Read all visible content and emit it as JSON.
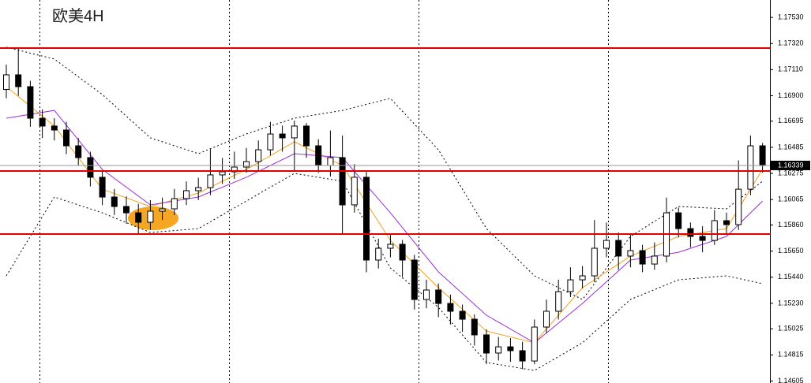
{
  "chart_data": {
    "type": "candlestick",
    "title": "欧美4H",
    "open": [
      1.1695,
      1.17068,
      1.16973,
      1.16719,
      1.16656,
      1.16624,
      1.16497,
      1.16402,
      1.16244,
      1.16085,
      1.16009,
      1.15958,
      1.15882,
      1.15971,
      1.1599,
      1.16072,
      1.16136,
      1.16161,
      1.16263,
      1.16288,
      1.16326,
      1.1637,
      1.16465,
      1.16592,
      1.16561,
      1.16656,
      1.16497,
      1.16339,
      1.16402,
      1.16022,
      1.16244,
      1.15578,
      1.15673,
      1.15705,
      1.15578,
      1.15261,
      1.15337,
      1.15229,
      1.15166,
      1.15102,
      1.14976,
      1.1483,
      1.1488,
      1.14849,
      1.14766,
      1.15039,
      1.15166,
      1.15324,
      1.15419,
      1.15451,
      1.15673,
      1.15736,
      1.1561,
      1.15654,
      1.15546,
      1.1561,
      1.15958,
      1.15831,
      1.15768,
      1.15736,
      1.15895,
      1.15863,
      1.16148,
      1.16497
    ],
    "high": [
      1.1715,
      1.1729,
      1.1702,
      1.1679,
      1.1672,
      1.1669,
      1.1656,
      1.1645,
      1.163,
      1.1615,
      1.1609,
      1.1603,
      1.1606,
      1.1608,
      1.1615,
      1.1621,
      1.1624,
      1.1647,
      1.164,
      1.1645,
      1.1648,
      1.1654,
      1.1669,
      1.1666,
      1.167,
      1.1668,
      1.1655,
      1.1662,
      1.1658,
      1.1635,
      1.1629,
      1.1575,
      1.1578,
      1.1574,
      1.1562,
      1.1542,
      1.1539,
      1.153,
      1.1522,
      1.1514,
      1.1502,
      1.1496,
      1.1495,
      1.1492,
      1.151,
      1.1526,
      1.1542,
      1.1552,
      1.1553,
      1.159,
      1.1588,
      1.158,
      1.1578,
      1.157,
      1.1572,
      1.1608,
      1.16,
      1.1588,
      1.1585,
      1.1598,
      1.1596,
      1.1638,
      1.1658,
      1.1652
    ],
    "low": [
      1.1688,
      1.169,
      1.1665,
      1.1656,
      1.1654,
      1.1643,
      1.1634,
      1.1617,
      1.1602,
      1.1594,
      1.1587,
      1.1579,
      1.1582,
      1.159,
      1.1594,
      1.1602,
      1.1606,
      1.161,
      1.1619,
      1.1623,
      1.1628,
      1.163,
      1.1642,
      1.1645,
      1.163,
      1.164,
      1.1628,
      1.1625,
      1.1579,
      1.1596,
      1.1548,
      1.1551,
      1.156,
      1.1544,
      1.1518,
      1.1519,
      1.1512,
      1.1506,
      1.15,
      1.1489,
      1.1474,
      1.1477,
      1.1476,
      1.147,
      1.1474,
      1.1499,
      1.151,
      1.1528,
      1.1535,
      1.154,
      1.156,
      1.155,
      1.1552,
      1.1548,
      1.155,
      1.1556,
      1.1576,
      1.1568,
      1.1564,
      1.157,
      1.1579,
      1.1582,
      1.161,
      1.1628
    ],
    "close": [
      1.17068,
      1.16973,
      1.16719,
      1.16656,
      1.16624,
      1.16497,
      1.16402,
      1.16244,
      1.16085,
      1.16009,
      1.15958,
      1.15882,
      1.15971,
      1.1599,
      1.16072,
      1.16136,
      1.16161,
      1.16263,
      1.16288,
      1.16326,
      1.1637,
      1.16465,
      1.16592,
      1.16561,
      1.16656,
      1.16497,
      1.16339,
      1.16402,
      1.16022,
      1.16244,
      1.15578,
      1.15673,
      1.15705,
      1.15578,
      1.15261,
      1.15337,
      1.15229,
      1.15166,
      1.15102,
      1.14976,
      1.1483,
      1.1488,
      1.14849,
      1.14766,
      1.15039,
      1.15166,
      1.15324,
      1.15419,
      1.15451,
      1.15673,
      1.15736,
      1.1561,
      1.15654,
      1.15546,
      1.1561,
      1.15958,
      1.15831,
      1.15768,
      1.15736,
      1.15895,
      1.15863,
      1.16148,
      1.16497,
      1.16339
    ],
    "up_color": "#ffffff",
    "down_color": "#000000",
    "overlays": [
      {
        "color": "#000000",
        "dashed": true,
        "x": [
          0,
          4,
          8,
          12,
          16,
          20,
          24,
          28,
          32,
          36,
          40,
          44,
          48,
          52,
          56,
          60,
          63
        ],
        "values": [
          1.1729,
          1.17195,
          1.16909,
          1.16561,
          1.16434,
          1.16592,
          1.16719,
          1.16782,
          1.16878,
          1.16465,
          1.15831,
          1.15451,
          1.15261,
          1.15768,
          1.16009,
          1.1599,
          1.16212
        ]
      },
      {
        "color": "#000000",
        "dashed": true,
        "x": [
          0,
          4,
          8,
          12,
          16,
          20,
          24,
          28,
          32,
          36,
          40,
          44,
          48,
          52,
          56,
          60,
          63
        ],
        "values": [
          1.15451,
          1.16085,
          1.15958,
          1.158,
          1.15831,
          1.16053,
          1.16275,
          1.16212,
          1.15514,
          1.15197,
          1.14754,
          1.1469,
          1.14912,
          1.15261,
          1.15419,
          1.15451,
          1.15388
        ]
      },
      {
        "color": "#f0a020",
        "dashed": false,
        "x": [
          0,
          4,
          8,
          12,
          16,
          20,
          24,
          28,
          32,
          36,
          40,
          44,
          48,
          52,
          56,
          60,
          63
        ],
        "values": [
          1.16973,
          1.16656,
          1.16148,
          1.16009,
          1.16117,
          1.16307,
          1.16529,
          1.16339,
          1.15736,
          1.15356,
          1.15007,
          1.14912,
          1.15356,
          1.1561,
          1.15768,
          1.15831,
          1.16307
        ]
      },
      {
        "color": "#9b30d9",
        "dashed": false,
        "x": [
          0,
          4,
          8,
          12,
          16,
          20,
          24,
          28,
          32,
          36,
          40,
          44,
          48,
          52,
          56,
          60,
          63
        ],
        "values": [
          1.16719,
          1.16782,
          1.16307,
          1.16022,
          1.16085,
          1.16244,
          1.16434,
          1.16402,
          1.15958,
          1.15483,
          1.15134,
          1.14912,
          1.15229,
          1.15578,
          1.15641,
          1.15768,
          1.16053
        ]
      }
    ],
    "levels": {
      "color": "#e00000",
      "values": [
        1.17283,
        1.16294,
        1.15787
      ]
    },
    "last_price": {
      "value": 1.16339,
      "label": "1.16339"
    },
    "ylim": [
      1.14589,
      1.1767
    ],
    "yticks": [
      {
        "value": 1.1753,
        "label": "1.17530"
      },
      {
        "value": 1.1732,
        "label": "1.17320"
      },
      {
        "value": 1.1711,
        "label": "1.17110"
      },
      {
        "value": 1.169,
        "label": "1.16900"
      },
      {
        "value": 1.16695,
        "label": "1.16695"
      },
      {
        "value": 1.16485,
        "label": "1.16485"
      },
      {
        "value": 1.16275,
        "label": "1.16275"
      },
      {
        "value": 1.16065,
        "label": "1.16065"
      },
      {
        "value": 1.1586,
        "label": "1.15860"
      },
      {
        "value": 1.1565,
        "label": "1.15650"
      },
      {
        "value": 1.1544,
        "label": "1.15440"
      },
      {
        "value": 1.1523,
        "label": "1.15230"
      },
      {
        "value": 1.15025,
        "label": "1.15025"
      },
      {
        "value": 1.14815,
        "label": "1.14815"
      },
      {
        "value": 1.14605,
        "label": "1.14605"
      }
    ]
  }
}
